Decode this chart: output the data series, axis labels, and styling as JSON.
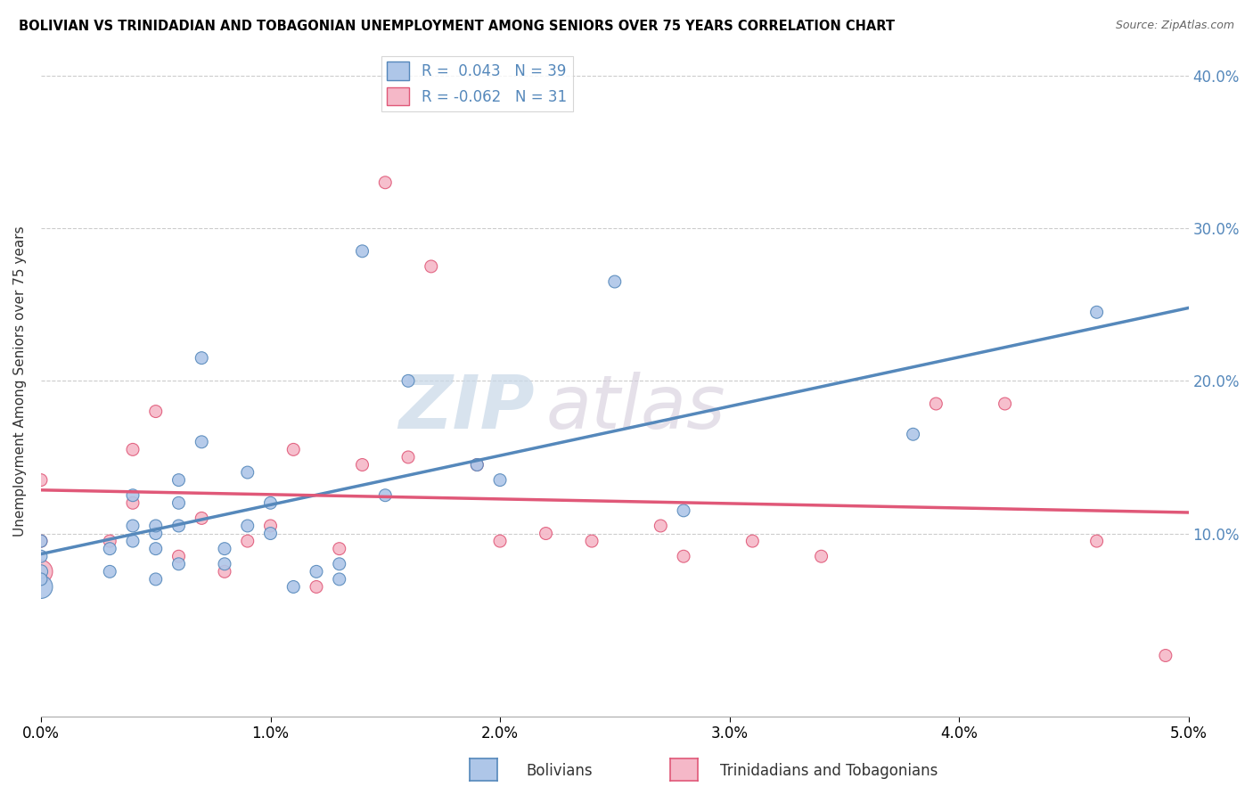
{
  "title": "BOLIVIAN VS TRINIDADIAN AND TOBAGONIAN UNEMPLOYMENT AMONG SENIORS OVER 75 YEARS CORRELATION CHART",
  "source": "Source: ZipAtlas.com",
  "xlabel_bolivians": "Bolivians",
  "xlabel_trinidadians": "Trinidadians and Tobagonians",
  "ylabel": "Unemployment Among Seniors over 75 years",
  "xlim": [
    0.0,
    0.05
  ],
  "ylim": [
    -0.02,
    0.42
  ],
  "r_bolivian": 0.043,
  "n_bolivian": 39,
  "r_trinidadian": -0.062,
  "n_trinidadian": 31,
  "color_bolivian": "#aec6e8",
  "color_trinidadian": "#f5b8c8",
  "line_color_bolivian": "#5588bb",
  "line_color_trinidadian": "#e05878",
  "watermark_zip": "ZIP",
  "watermark_atlas": "atlas",
  "bolivian_x": [
    0.0,
    0.0,
    0.0,
    0.0,
    0.0,
    0.003,
    0.003,
    0.004,
    0.004,
    0.004,
    0.005,
    0.005,
    0.005,
    0.005,
    0.006,
    0.006,
    0.006,
    0.006,
    0.007,
    0.007,
    0.008,
    0.008,
    0.009,
    0.009,
    0.01,
    0.01,
    0.011,
    0.012,
    0.013,
    0.013,
    0.014,
    0.015,
    0.016,
    0.019,
    0.02,
    0.025,
    0.028,
    0.038,
    0.046
  ],
  "bolivian_y": [
    0.065,
    0.075,
    0.085,
    0.095,
    0.07,
    0.075,
    0.09,
    0.095,
    0.105,
    0.125,
    0.07,
    0.09,
    0.1,
    0.105,
    0.08,
    0.105,
    0.12,
    0.135,
    0.16,
    0.215,
    0.08,
    0.09,
    0.105,
    0.14,
    0.1,
    0.12,
    0.065,
    0.075,
    0.08,
    0.07,
    0.285,
    0.125,
    0.2,
    0.145,
    0.135,
    0.265,
    0.115,
    0.165,
    0.245
  ],
  "bolivian_sizes": [
    350,
    120,
    100,
    100,
    100,
    100,
    100,
    100,
    100,
    100,
    100,
    100,
    100,
    100,
    100,
    100,
    100,
    100,
    100,
    100,
    100,
    100,
    100,
    100,
    100,
    100,
    100,
    100,
    100,
    100,
    100,
    100,
    100,
    100,
    100,
    100,
    100,
    100,
    100
  ],
  "trinidadian_x": [
    0.0,
    0.0,
    0.0,
    0.003,
    0.004,
    0.004,
    0.005,
    0.006,
    0.007,
    0.008,
    0.009,
    0.01,
    0.011,
    0.012,
    0.013,
    0.014,
    0.015,
    0.016,
    0.017,
    0.019,
    0.02,
    0.022,
    0.024,
    0.027,
    0.028,
    0.031,
    0.034,
    0.039,
    0.042,
    0.046,
    0.049
  ],
  "trinidadian_y": [
    0.075,
    0.095,
    0.135,
    0.095,
    0.12,
    0.155,
    0.18,
    0.085,
    0.11,
    0.075,
    0.095,
    0.105,
    0.155,
    0.065,
    0.09,
    0.145,
    0.33,
    0.15,
    0.275,
    0.145,
    0.095,
    0.1,
    0.095,
    0.105,
    0.085,
    0.095,
    0.085,
    0.185,
    0.185,
    0.095,
    0.02
  ],
  "trinidadian_sizes": [
    350,
    100,
    100,
    100,
    100,
    100,
    100,
    100,
    100,
    100,
    100,
    100,
    100,
    100,
    100,
    100,
    100,
    100,
    100,
    100,
    100,
    100,
    100,
    100,
    100,
    100,
    100,
    100,
    100,
    100,
    100
  ]
}
